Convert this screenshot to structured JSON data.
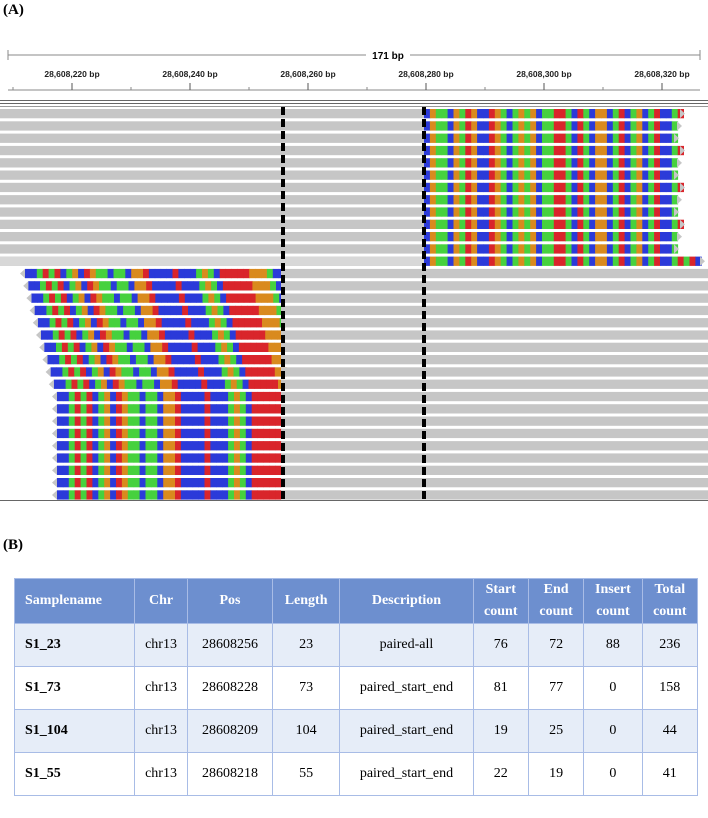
{
  "panels": {
    "a": "(A)",
    "b": "(B)"
  },
  "igv": {
    "span_label": "171 bp",
    "ruler": [
      {
        "label": "28,608,220 bp",
        "pos": 28608220
      },
      {
        "label": "28,608,240 bp",
        "pos": 28608240
      },
      {
        "label": "28,608,260 bp",
        "pos": 28608260
      },
      {
        "label": "28,608,280 bp",
        "pos": 28608280
      },
      {
        "label": "28,608,300 bp",
        "pos": 28608300
      },
      {
        "label": "28,608,320 bp",
        "pos": 28608320
      }
    ],
    "colors": {
      "read": "#c6c6c6",
      "A": "#46d13e",
      "C": "#2b3ad9",
      "G": "#d98a1e",
      "T": "#d9252b",
      "breakpoint": "#000000"
    }
  },
  "table": {
    "headers": [
      [
        "Samplename"
      ],
      [
        "Chr"
      ],
      [
        "Pos"
      ],
      [
        "Length"
      ],
      [
        "Description"
      ],
      [
        "Start",
        "count"
      ],
      [
        "End",
        "count"
      ],
      [
        "Insert",
        "count"
      ],
      [
        "Total",
        "count"
      ]
    ],
    "rows": [
      [
        "S1_23",
        "chr13",
        "28608256",
        "23",
        "paired-all",
        "76",
        "72",
        "88",
        "236"
      ],
      [
        "S1_73",
        "chr13",
        "28608228",
        "73",
        "paired_start_end",
        "81",
        "77",
        "0",
        "158"
      ],
      [
        "S1_104",
        "chr13",
        "28608209",
        "104",
        "paired_start_end",
        "19",
        "25",
        "0",
        "44"
      ],
      [
        "S1_55",
        "chr13",
        "28608218",
        "55",
        "paired_start_end",
        "22",
        "19",
        "0",
        "41"
      ]
    ]
  }
}
